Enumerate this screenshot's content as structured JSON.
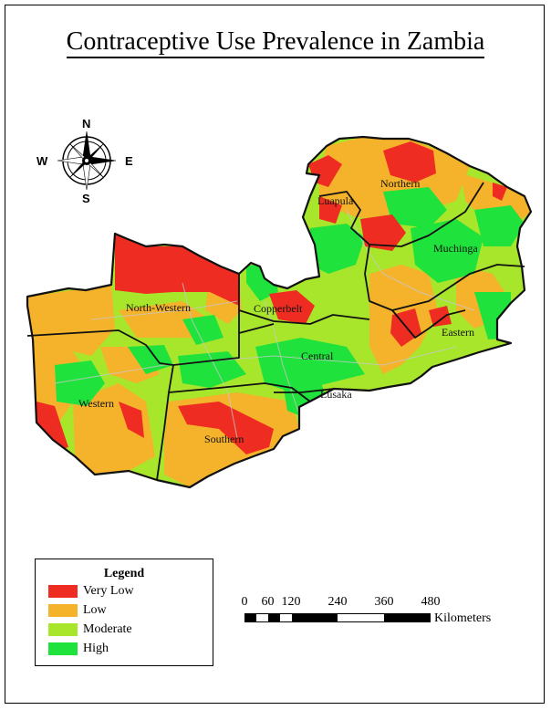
{
  "title": "Contraceptive Use Prevalence in Zambia",
  "compass": {
    "n": "N",
    "s": "S",
    "e": "E",
    "w": "W"
  },
  "regions": {
    "luapula": "Luapula",
    "northern": "Northern",
    "muchinga": "Muchinga",
    "north_western": "North-Western",
    "copperbelt": "Copperbelt",
    "central": "Central",
    "eastern": "Eastern",
    "western": "Western",
    "lusaka": "Lusaka",
    "southern": "Southern"
  },
  "legend": {
    "title": "Legend",
    "items": [
      {
        "label": "Very Low",
        "color": "#ee2c22"
      },
      {
        "label": "Low",
        "color": "#f4b32a"
      },
      {
        "label": "Moderate",
        "color": "#a8e62c"
      },
      {
        "label": "High",
        "color": "#1fe23c"
      }
    ]
  },
  "scale": {
    "ticks": [
      "0",
      "60",
      "120",
      "240",
      "360",
      "480"
    ],
    "unit": "Kilometers"
  }
}
